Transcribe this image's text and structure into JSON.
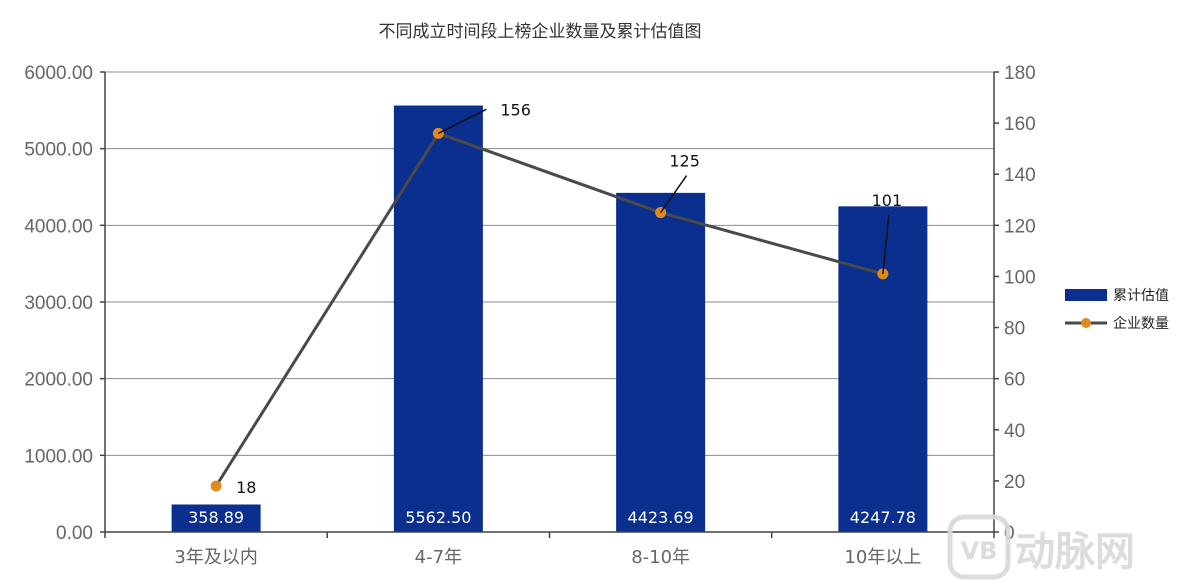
{
  "chart_data": {
    "type": "bar",
    "title": "不同成立时间段上榜企业数量及累计估值图",
    "categories": [
      "3年及以内",
      "4-7年",
      "8-10年",
      "10年以上"
    ],
    "series": [
      {
        "name": "累计估值",
        "type": "bar",
        "axis": "left",
        "color": "#0b2f8e",
        "values": [
          358.89,
          5562.5,
          4423.69,
          4247.78
        ],
        "labels": [
          "358.89",
          "5562.50",
          "4423.69",
          "4247.78"
        ]
      },
      {
        "name": "企业数量",
        "type": "line",
        "axis": "right",
        "color": "#4a4a4a",
        "marker_color": "#e08a1e",
        "values": [
          18,
          156,
          125,
          101
        ],
        "labels": [
          "18",
          "156",
          "125",
          "101"
        ]
      }
    ],
    "y_left": {
      "min": 0,
      "max": 6000,
      "ticks": [
        "0.00",
        "1000.00",
        "2000.00",
        "3000.00",
        "4000.00",
        "5000.00",
        "6000.00"
      ]
    },
    "y_right": {
      "min": 0,
      "max": 180,
      "ticks": [
        "0",
        "20",
        "40",
        "60",
        "80",
        "100",
        "120",
        "140",
        "160",
        "180"
      ]
    },
    "grid": true,
    "legend": "right"
  },
  "watermark": {
    "text": "动脉网",
    "badge": "VB"
  }
}
